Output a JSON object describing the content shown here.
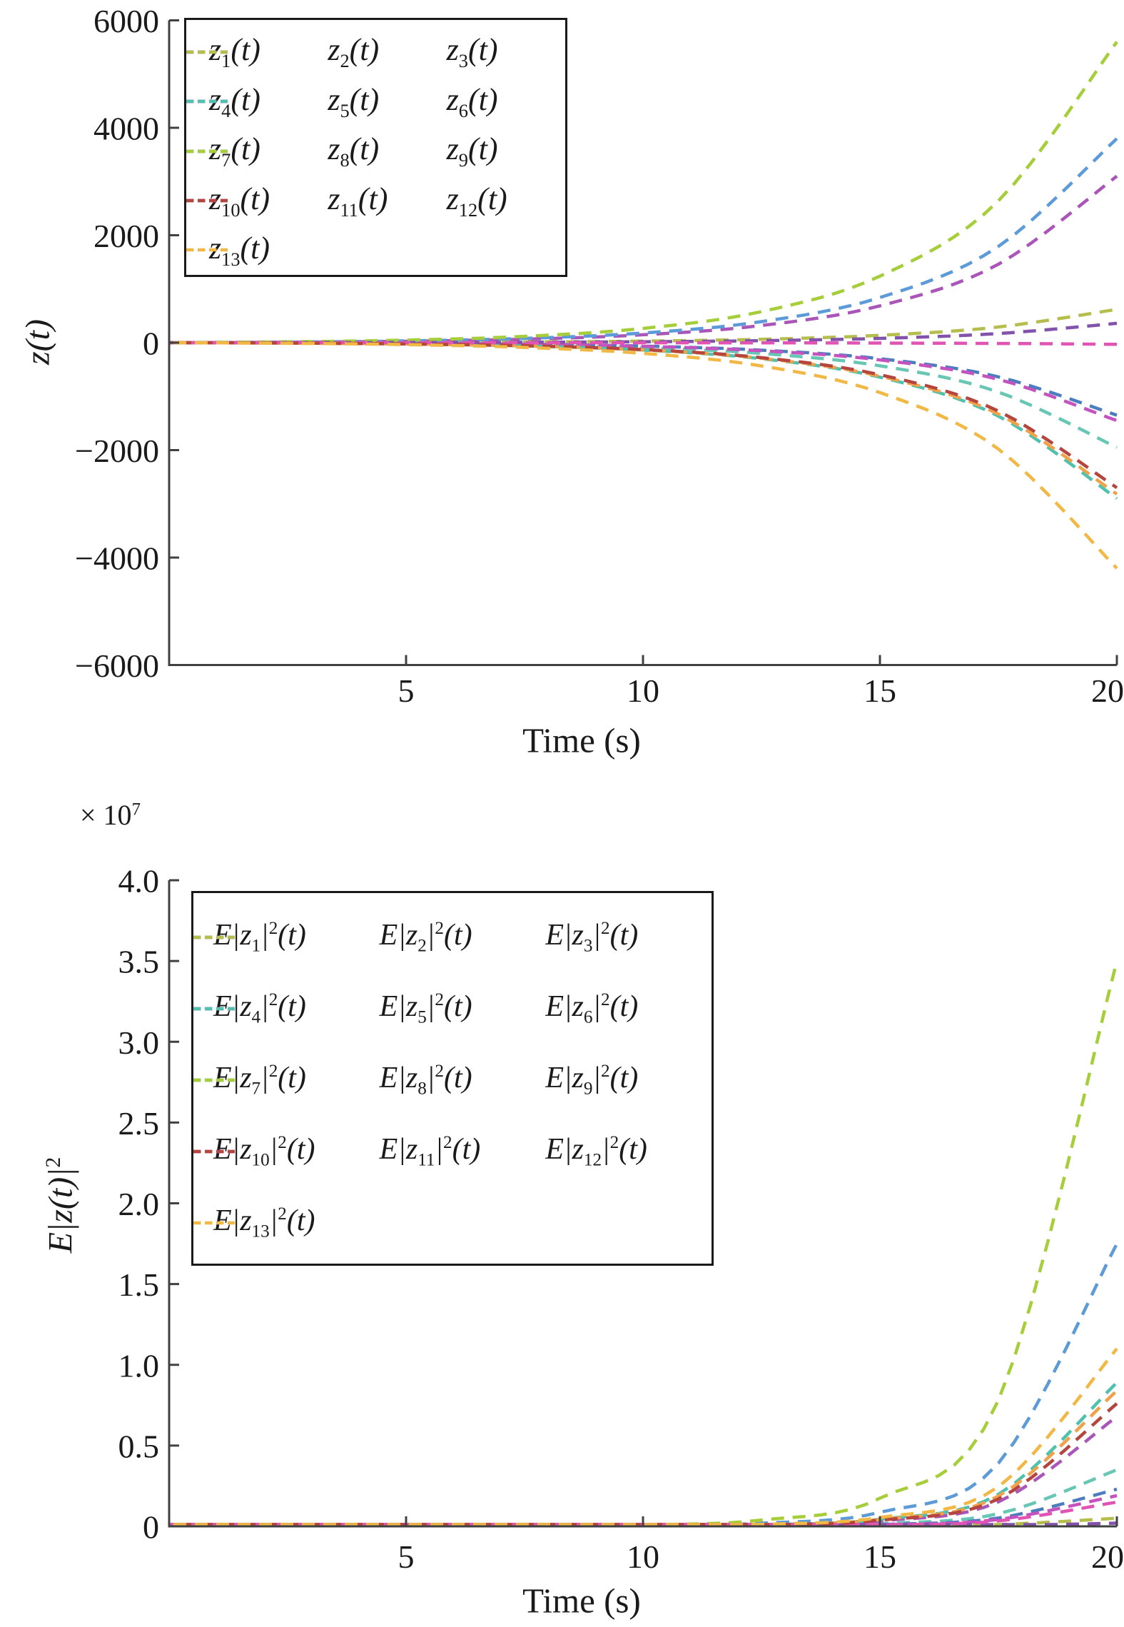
{
  "figure": {
    "background": "#ffffff",
    "axis_color": "#404040",
    "text_color": "#1a1a1a"
  },
  "chart_data": [
    {
      "id": "state-trajectories",
      "type": "line",
      "xlabel": "Time (s)",
      "ylabel": {
        "pre": "z(t)",
        "sup": ""
      },
      "offset": {
        "pre": "",
        "sup": ""
      },
      "xlim": [
        0,
        20
      ],
      "ylim": [
        -6000,
        6000
      ],
      "grid": false,
      "legend_position": "top-left",
      "line_style": "dashed",
      "xticks": [
        {
          "v": 5,
          "label": "5"
        },
        {
          "v": 10,
          "label": "10"
        },
        {
          "v": 15,
          "label": "15"
        },
        {
          "v": 20,
          "label": "20"
        }
      ],
      "yticks": [
        {
          "v": 6000,
          "label": "6000"
        },
        {
          "v": 4000,
          "label": "4000"
        },
        {
          "v": 2000,
          "label": "2000"
        },
        {
          "v": 0,
          "label": "0"
        },
        {
          "v": -2000,
          "label": "−2000"
        },
        {
          "v": -4000,
          "label": "−4000"
        },
        {
          "v": -6000,
          "label": "−6000"
        }
      ],
      "label_format": {
        "pre": "z",
        "mid": "",
        "sup": "",
        "post": "(t)"
      },
      "x": [
        0,
        2.5,
        5,
        7.5,
        10,
        12.5,
        15,
        17.5,
        20
      ],
      "series": [
        {
          "name": "z1",
          "sub": "1",
          "color": "#68C6B4",
          "values": [
            0,
            -5,
            -17,
            -41,
            -92,
            -201,
            -431,
            -919,
            -1950
          ]
        },
        {
          "name": "z2",
          "sub": "2",
          "color": "#AA56B8",
          "values": [
            0,
            9,
            27,
            65,
            147,
            320,
            686,
            1461,
            3100
          ]
        },
        {
          "name": "z3",
          "sub": "3",
          "color": "#B5BD4C",
          "values": [
            0,
            2,
            5,
            13,
            29,
            64,
            137,
            292,
            620
          ]
        },
        {
          "name": "z4",
          "sub": "4",
          "color": "#4C7DBE",
          "values": [
            0,
            -4,
            -12,
            -28,
            -64,
            -139,
            -299,
            -636,
            -1350
          ]
        },
        {
          "name": "z5",
          "sub": "5",
          "color": "#C553BF",
          "values": [
            0,
            -4,
            -13,
            -31,
            -69,
            -150,
            -321,
            -683,
            -1450
          ]
        },
        {
          "name": "z6",
          "sub": "6",
          "color": "#4FC1AC",
          "values": [
            0,
            -8,
            -25,
            -61,
            -138,
            -299,
            -642,
            -1367,
            -2900
          ]
        },
        {
          "name": "z7",
          "sub": "7",
          "color": "#F0A24B",
          "values": [
            0,
            -8,
            -24,
            -59,
            -134,
            -291,
            -624,
            -1329,
            -2820
          ]
        },
        {
          "name": "z8",
          "sub": "8",
          "color": "#5C9AD8",
          "values": [
            0,
            11,
            33,
            80,
            180,
            392,
            841,
            1791,
            3800
          ]
        },
        {
          "name": "z9",
          "sub": "9",
          "color": "#A6CE3B",
          "values": [
            0,
            16,
            48,
            118,
            266,
            578,
            1239,
            2640,
            5600
          ]
        },
        {
          "name": "z10",
          "sub": "10",
          "color": "#8353AB",
          "values": [
            0,
            1,
            3,
            8,
            17,
            37,
            80,
            170,
            360
          ]
        },
        {
          "name": "z11",
          "sub": "11",
          "color": "#E254B4",
          "values": [
            0,
            0,
            0,
            -1,
            -1,
            -3,
            -7,
            -14,
            -30
          ]
        },
        {
          "name": "z12",
          "sub": "12",
          "color": "#B5453F",
          "values": [
            0,
            -7,
            -23,
            -57,
            -128,
            -279,
            -597,
            -1273,
            -2700
          ]
        },
        {
          "name": "z13",
          "sub": "13",
          "color": "#F2B845",
          "values": [
            0,
            -12,
            -36,
            -89,
            -199,
            -433,
            -929,
            -1980,
            -4200
          ]
        }
      ]
    },
    {
      "id": "mean-square-trajectories",
      "type": "line",
      "xlabel": "Time (s)",
      "ylabel": {
        "pre": "E|z(t)|",
        "sup": "2"
      },
      "offset": {
        "pre": "× 10",
        "sup": "7"
      },
      "xlim": [
        0,
        20
      ],
      "ylim": [
        0,
        4.0
      ],
      "unit_scale": "1e7",
      "grid": false,
      "legend_position": "top-left",
      "line_style": "dashed",
      "xticks": [
        {
          "v": 5,
          "label": "5"
        },
        {
          "v": 10,
          "label": "10"
        },
        {
          "v": 15,
          "label": "15"
        },
        {
          "v": 20,
          "label": "20"
        }
      ],
      "yticks": [
        {
          "v": 4.0,
          "label": "4.0"
        },
        {
          "v": 3.5,
          "label": "3.5"
        },
        {
          "v": 3.0,
          "label": "3.0"
        },
        {
          "v": 2.5,
          "label": "2.5"
        },
        {
          "v": 2.0,
          "label": "2.0"
        },
        {
          "v": 1.5,
          "label": "1.5"
        },
        {
          "v": 1.0,
          "label": "1.0"
        },
        {
          "v": 0.5,
          "label": "0.5"
        },
        {
          "v": 0,
          "label": "0"
        }
      ],
      "label_format": {
        "pre": "E|z",
        "mid": "|",
        "sup": "2",
        "post": "(t)"
      },
      "x": [
        0,
        2.5,
        5,
        7.5,
        10,
        12.5,
        15,
        17.5,
        20
      ],
      "series": [
        {
          "name": "Ez1",
          "sub": "1",
          "color": "#68C6B4",
          "values": [
            0,
            0,
            0,
            0.0002,
            0.0009,
            0.0039,
            0.0174,
            0.0781,
            0.35
          ]
        },
        {
          "name": "Ez2",
          "sub": "2",
          "color": "#AA56B8",
          "values": [
            0,
            0,
            0.0001,
            0.0004,
            0.0017,
            0.0076,
            0.0339,
            0.1517,
            0.68
          ]
        },
        {
          "name": "Ez3",
          "sub": "3",
          "color": "#B5BD4C",
          "values": [
            0,
            0,
            0,
            0,
            0.0001,
            0.0006,
            0.0025,
            0.0112,
            0.05
          ]
        },
        {
          "name": "Ez4",
          "sub": "4",
          "color": "#4C7DBE",
          "values": [
            0,
            0,
            0,
            0.0001,
            0.0006,
            0.0026,
            0.0114,
            0.0513,
            0.23
          ]
        },
        {
          "name": "Ez5",
          "sub": "5",
          "color": "#C553BF",
          "values": [
            0,
            0,
            0,
            0.0001,
            0.0005,
            0.0021,
            0.0095,
            0.0424,
            0.19
          ]
        },
        {
          "name": "Ez6",
          "sub": "6",
          "color": "#4FC1AC",
          "values": [
            0,
            0,
            0.0001,
            0.0005,
            0.0022,
            0.0099,
            0.0443,
            0.1986,
            0.89
          ]
        },
        {
          "name": "Ez7",
          "sub": "7",
          "color": "#F0A24B",
          "values": [
            0,
            0,
            0.0001,
            0.0005,
            0.0021,
            0.0093,
            0.0418,
            0.1874,
            0.84
          ]
        },
        {
          "name": "Ez8",
          "sub": "8",
          "color": "#5C9AD8",
          "values": [
            0,
            0,
            0.0002,
            0.001,
            0.0043,
            0.0194,
            0.0871,
            0.3905,
            1.75
          ]
        },
        {
          "name": "Ez9",
          "sub": "9",
          "color": "#A6CE3B",
          "values": [
            0,
            0.0001,
            0.0004,
            0.0019,
            0.0087,
            0.0389,
            0.1742,
            0.781,
            3.5
          ]
        },
        {
          "name": "Ez10",
          "sub": "10",
          "color": "#8353AB",
          "values": [
            0,
            0,
            0,
            0,
            0,
            0.0002,
            0.001,
            0.0045,
            0.02
          ]
        },
        {
          "name": "Ez11",
          "sub": "11",
          "color": "#E254B4",
          "values": [
            0,
            0,
            0,
            0.0001,
            0.0004,
            0.0017,
            0.0075,
            0.0335,
            0.15
          ]
        },
        {
          "name": "Ez12",
          "sub": "12",
          "color": "#B5453F",
          "values": [
            0,
            0,
            0.0001,
            0.0004,
            0.0019,
            0.0084,
            0.0378,
            0.1696,
            0.76
          ]
        },
        {
          "name": "Ez13",
          "sub": "13",
          "color": "#F2B845",
          "values": [
            0,
            0,
            0.0001,
            0.0006,
            0.0027,
            0.0122,
            0.0548,
            0.2454,
            1.1
          ]
        }
      ]
    }
  ]
}
